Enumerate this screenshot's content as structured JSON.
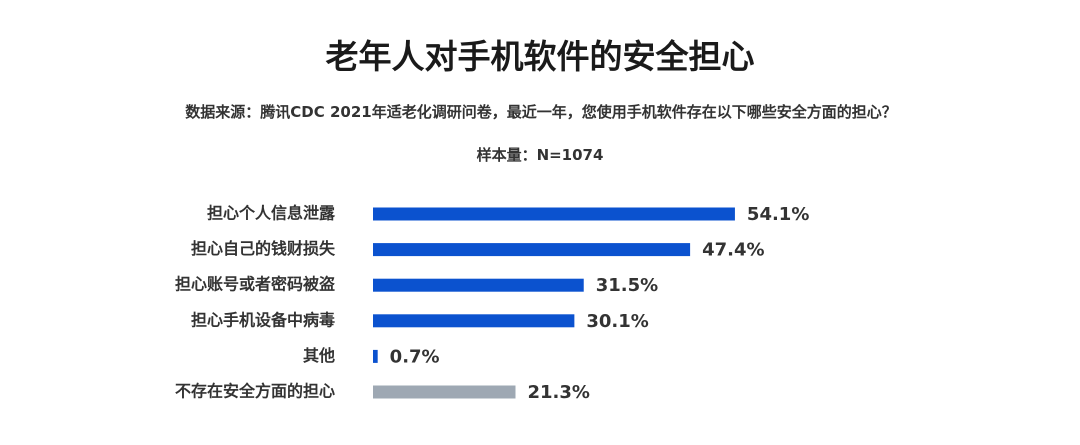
{
  "chart_data": {
    "type": "bar",
    "orientation": "horizontal",
    "title": "老年人对手机软件的安全担心",
    "subtitle": "数据来源：腾讯CDC 2021年适老化调研问卷，最近一年，您使用手机软件存在以下哪些安全方面的担心？",
    "sample_size": "样本量：N=1074",
    "categories": [
      "担心个人信息泄露",
      "担心自己的钱财损失",
      "担心账号或者密码被盗",
      "担心手机设备中病毒",
      "其他",
      "不存在安全方面的担心"
    ],
    "values": [
      54.1,
      47.4,
      31.5,
      30.1,
      0.7,
      21.3
    ],
    "value_labels": [
      "54.1%",
      "47.4%",
      "31.5%",
      "30.1%",
      "0.7%",
      "21.3%"
    ],
    "colors": [
      "#0b52cf",
      "#0b52cf",
      "#0b52cf",
      "#0b52cf",
      "#0b52cf",
      "#9ea8b3"
    ]
  }
}
